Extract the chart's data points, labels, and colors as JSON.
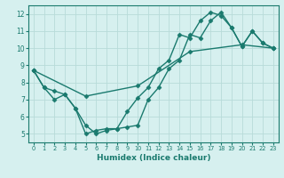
{
  "line1_x": [
    0,
    1,
    2,
    3,
    4,
    5,
    6,
    7,
    8,
    9,
    10,
    11,
    12,
    13,
    14,
    15,
    16,
    17,
    18,
    19,
    20,
    21,
    22,
    23
  ],
  "line1_y": [
    8.7,
    7.7,
    7.0,
    7.3,
    6.5,
    5.0,
    5.2,
    5.3,
    5.3,
    6.3,
    7.1,
    7.7,
    8.8,
    9.3,
    10.8,
    10.6,
    11.6,
    12.1,
    11.9,
    11.2,
    10.1,
    11.0,
    10.3,
    10.0
  ],
  "line2_x": [
    0,
    1,
    2,
    3,
    4,
    5,
    6,
    7,
    8,
    9,
    10,
    11,
    12,
    13,
    14,
    15,
    16,
    17,
    18,
    19,
    20,
    21,
    22,
    23
  ],
  "line2_y": [
    8.7,
    7.7,
    7.5,
    7.3,
    6.5,
    5.5,
    5.0,
    5.2,
    5.3,
    5.4,
    5.5,
    7.0,
    7.7,
    8.8,
    9.3,
    10.8,
    10.6,
    11.6,
    12.1,
    11.2,
    10.1,
    11.0,
    10.3,
    10.0
  ],
  "line3_x": [
    0,
    5,
    10,
    15,
    20,
    23
  ],
  "line3_y": [
    8.7,
    7.2,
    7.8,
    9.8,
    10.2,
    10.0
  ],
  "color": "#1a7a6e",
  "bg_color": "#d6f0ef",
  "grid_color": "#b8dbd9",
  "xlabel": "Humidex (Indice chaleur)",
  "xlim": [
    -0.5,
    23.5
  ],
  "ylim": [
    4.5,
    12.5
  ],
  "yticks": [
    5,
    6,
    7,
    8,
    9,
    10,
    11,
    12
  ],
  "xticks": [
    0,
    1,
    2,
    3,
    4,
    5,
    6,
    7,
    8,
    9,
    10,
    11,
    12,
    13,
    14,
    15,
    16,
    17,
    18,
    19,
    20,
    21,
    22,
    23
  ],
  "marker": "D",
  "markersize": 2.5,
  "linewidth": 1.0
}
